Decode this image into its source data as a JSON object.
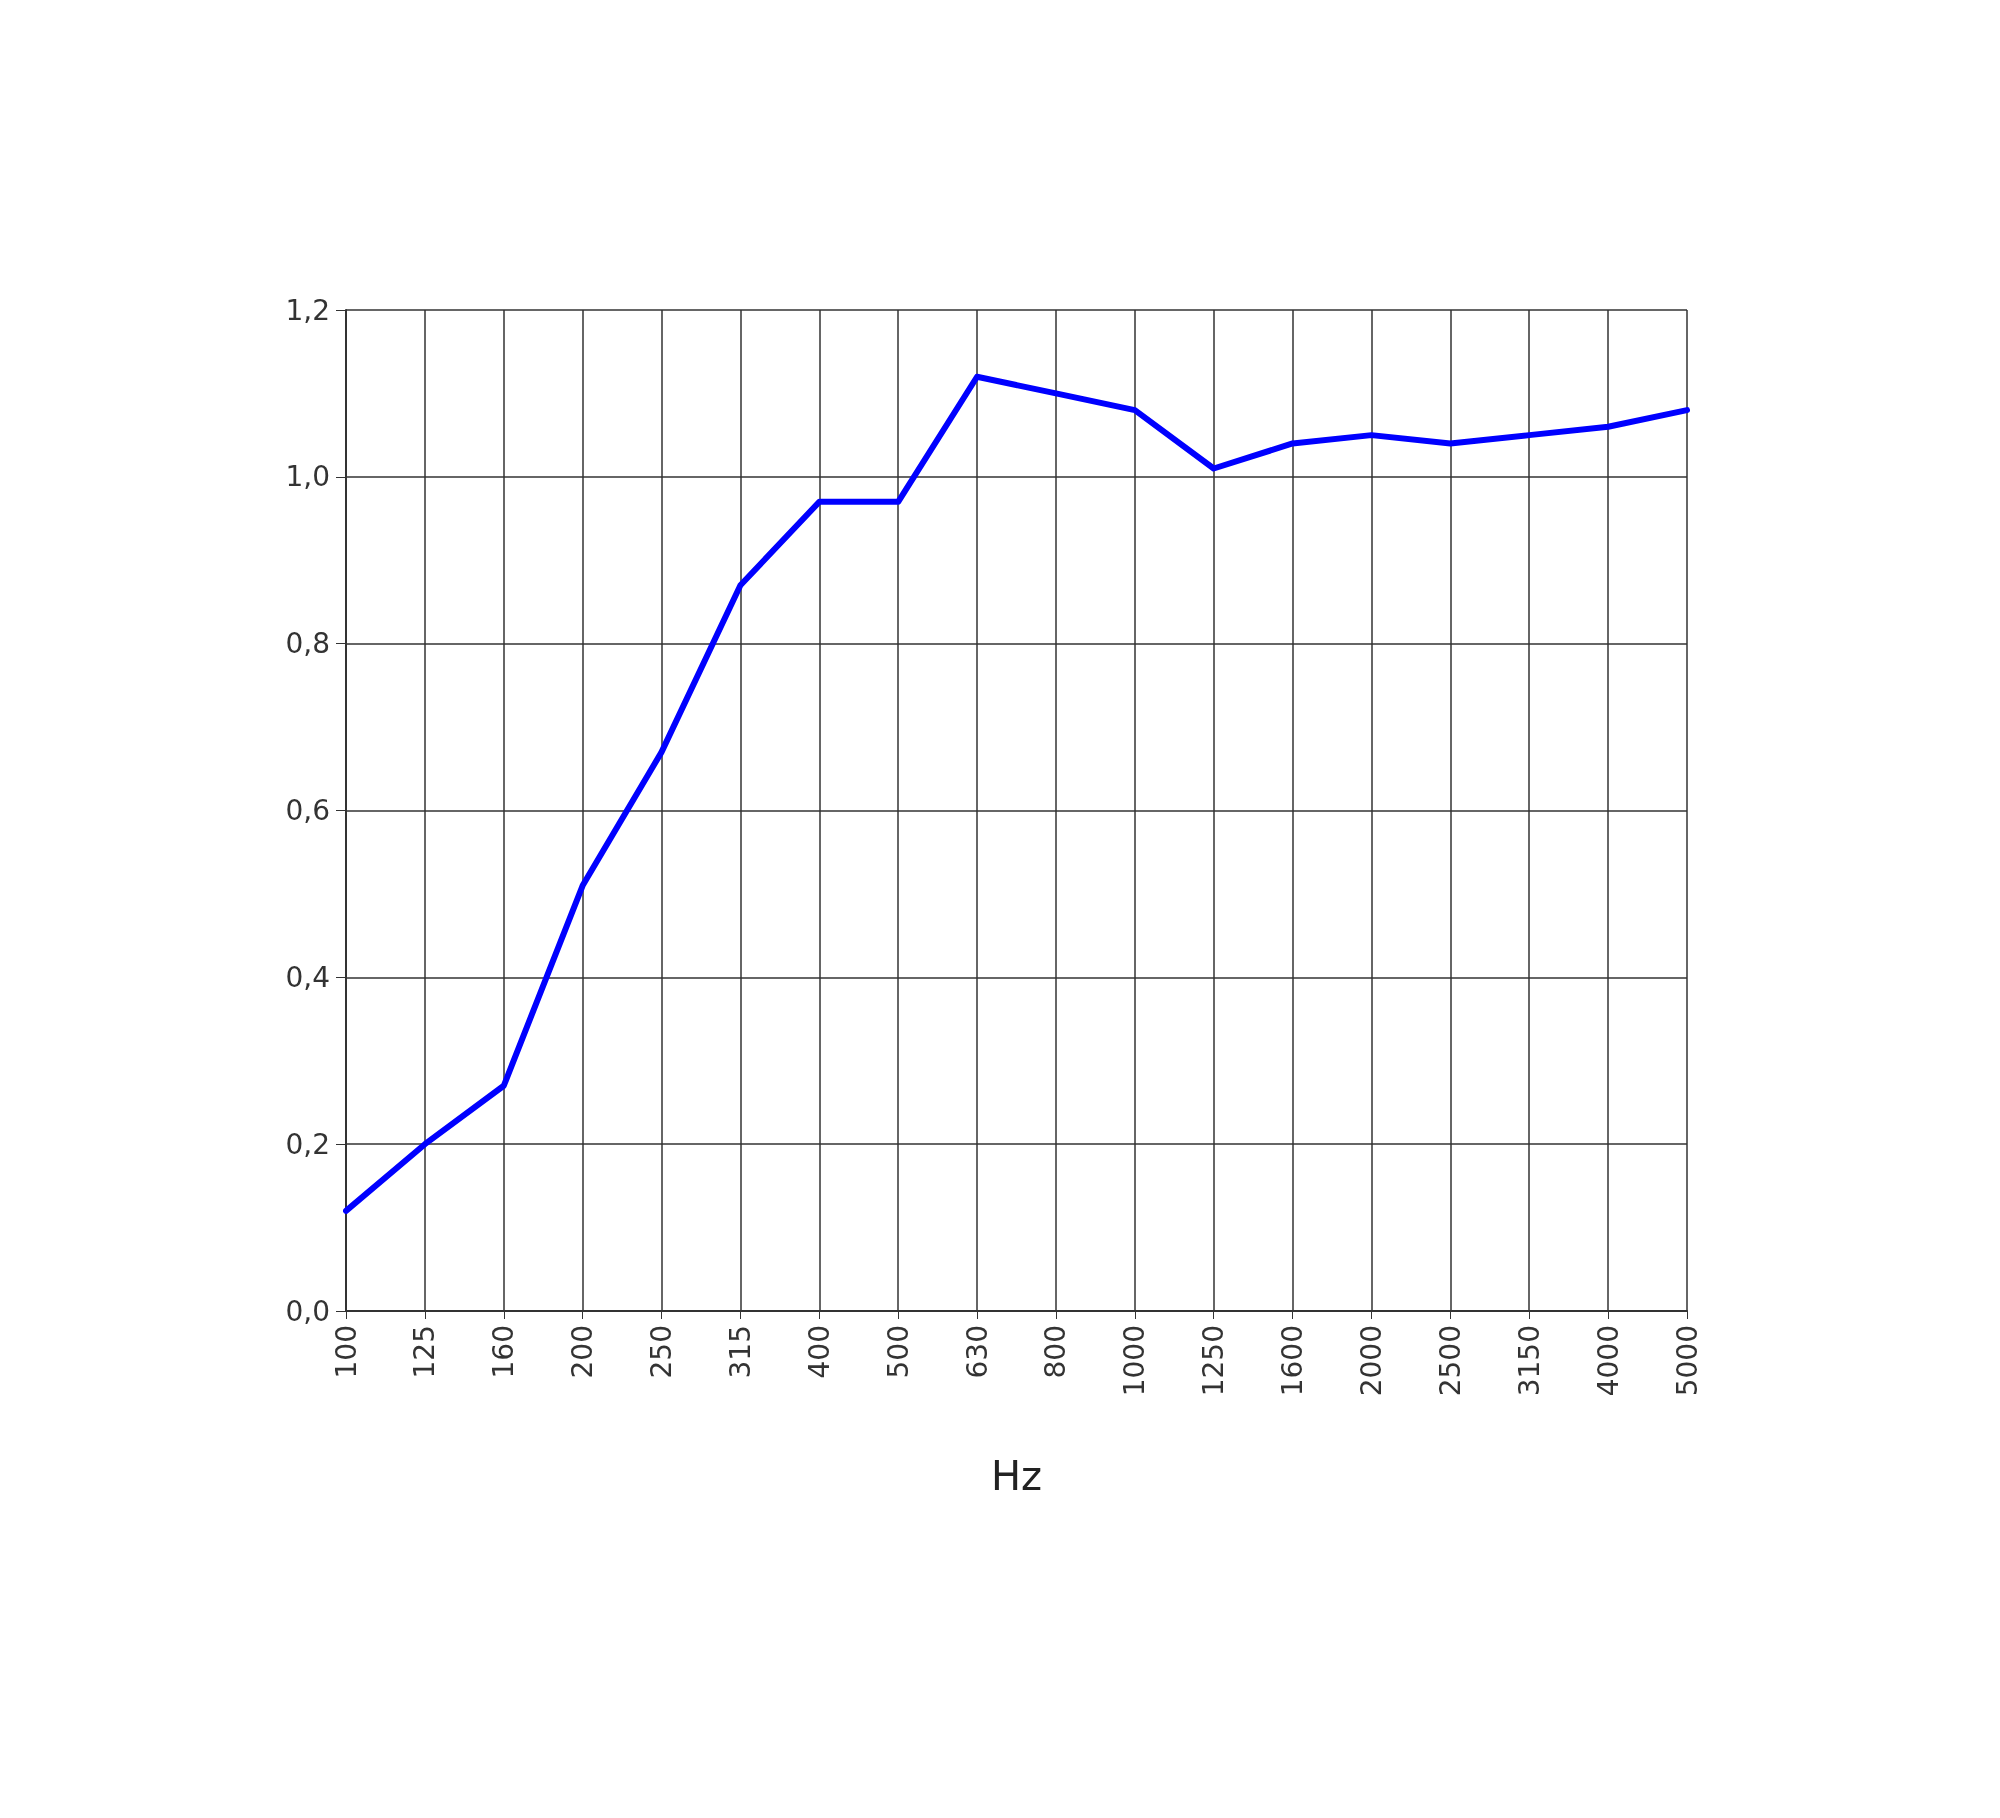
{
  "chart_data": {
    "type": "line",
    "xlabel": "Hz",
    "categories": [
      "100",
      "125",
      "160",
      "200",
      "250",
      "315",
      "400",
      "500",
      "630",
      "800",
      "1000",
      "1250",
      "1600",
      "2000",
      "2500",
      "3150",
      "4000",
      "5000"
    ],
    "series": [
      {
        "color": "#0000ff",
        "values": [
          0.12,
          0.2,
          0.27,
          0.51,
          0.67,
          0.87,
          0.97,
          0.97,
          1.12,
          1.1,
          1.08,
          1.01,
          1.04,
          1.05,
          1.04,
          1.05,
          1.06,
          1.08
        ]
      }
    ],
    "ylim": [
      0,
      1.2
    ],
    "yticks": [
      {
        "value": 0,
        "label": "0,0"
      },
      {
        "value": 0.2,
        "label": "0,2"
      },
      {
        "value": 0.4,
        "label": "0,4"
      },
      {
        "value": 0.6,
        "label": "0,6"
      },
      {
        "value": 0.8,
        "label": "0,8"
      },
      {
        "value": 1,
        "label": "1,0"
      },
      {
        "value": 1.2,
        "label": "1,2"
      }
    ],
    "grid": true,
    "marker": "none",
    "line_style": "solid"
  }
}
